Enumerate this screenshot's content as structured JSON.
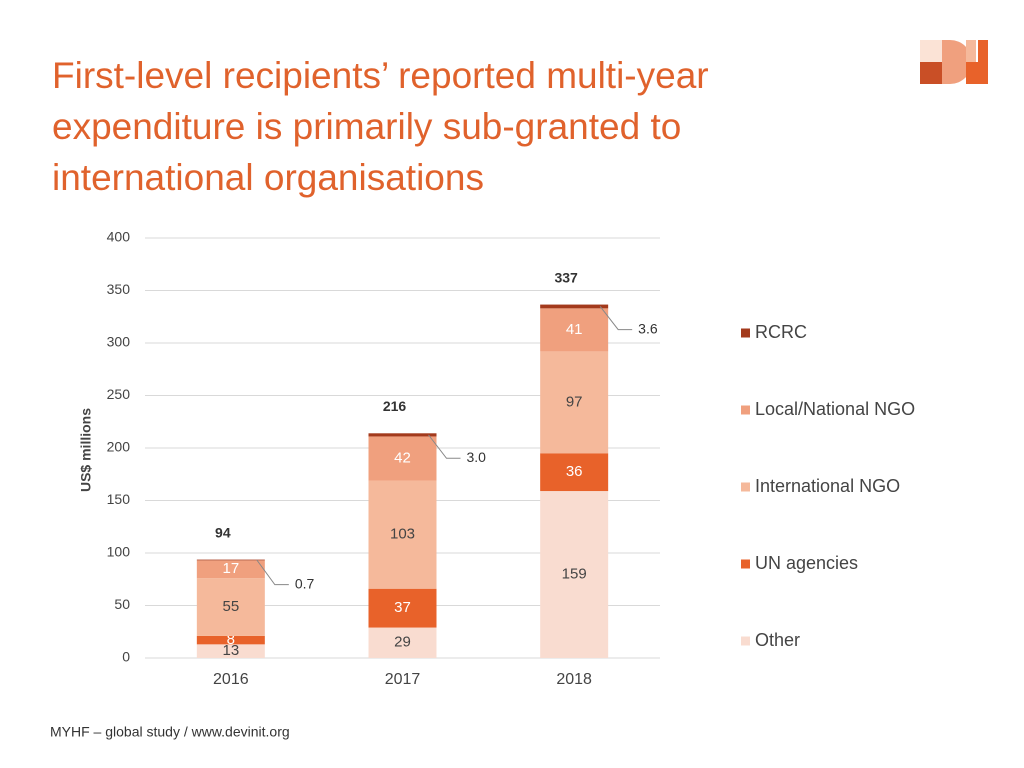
{
  "header": {
    "title_lines": [
      "First-level recipients’ reported multi-year",
      "expenditure is primarily sub-granted to",
      "international organisations"
    ]
  },
  "chart_data": {
    "type": "stacked_bar",
    "y_label": "US$ millions",
    "categories": [
      "2016",
      "2017",
      "2018"
    ],
    "series": [
      {
        "name": "Other",
        "color": "#f9dcd0",
        "label_color": "#444444",
        "values": [
          13,
          29,
          159
        ]
      },
      {
        "name": "UN agencies",
        "color": "#e8622a",
        "label_color": "#ffffff",
        "values": [
          8,
          37,
          36
        ]
      },
      {
        "name": "International NGO",
        "color": "#f5b99b",
        "label_color": "#444444",
        "values": [
          55,
          103,
          97
        ]
      },
      {
        "name": "Local/National NGO",
        "color": "#f0a07e",
        "label_color": "#ffffff",
        "values": [
          17,
          42,
          41
        ]
      },
      {
        "name": "RCRC",
        "color": "#a33a1c",
        "label_color": "#333333",
        "label_position": "outside",
        "values": [
          0.7,
          3.0,
          3.6
        ],
        "value_labels": [
          "0.7",
          "3.0",
          "3.6"
        ]
      }
    ],
    "totals": [
      94,
      216,
      337
    ],
    "ylim": [
      0,
      400
    ],
    "yticks": [
      0,
      50,
      100,
      150,
      200,
      250,
      300,
      350,
      400
    ],
    "grid": true,
    "legend": "right"
  },
  "footer": {
    "text": "MYHF – global study / www.devinit.org"
  }
}
